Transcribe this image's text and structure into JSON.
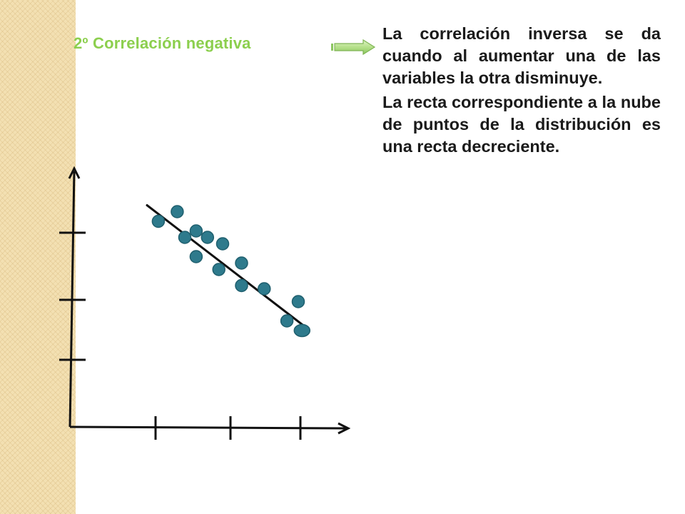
{
  "slide": {
    "title": "2º Correlación negativa",
    "accent_color": "#8ccf4e",
    "arrow_icon": "right-arrow-icon"
  },
  "description": {
    "paragraphs": [
      "La correlación inversa se da cuando al aumentar una de las variables la otra disminuye.",
      "La recta correspondiente a la nube de puntos de la distribución es una recta decreciente."
    ]
  },
  "chart_data": {
    "type": "scatter",
    "title": "",
    "xlabel": "",
    "ylabel": "",
    "x_ticks": 3,
    "y_ticks": 3,
    "points": [
      {
        "x": 1.4,
        "y": 3.35
      },
      {
        "x": 1.15,
        "y": 3.2
      },
      {
        "x": 1.5,
        "y": 2.95
      },
      {
        "x": 1.65,
        "y": 3.05
      },
      {
        "x": 1.8,
        "y": 2.95
      },
      {
        "x": 2.0,
        "y": 2.85
      },
      {
        "x": 1.65,
        "y": 2.65
      },
      {
        "x": 2.25,
        "y": 2.55
      },
      {
        "x": 1.95,
        "y": 2.45
      },
      {
        "x": 2.25,
        "y": 2.2
      },
      {
        "x": 2.55,
        "y": 2.15
      },
      {
        "x": 3.0,
        "y": 1.95
      },
      {
        "x": 2.85,
        "y": 1.65
      },
      {
        "x": 3.05,
        "y": 1.5
      }
    ],
    "trend_line": {
      "x": [
        1.0,
        3.1
      ],
      "y": [
        3.45,
        1.55
      ]
    },
    "point_color": "#2e7a8c",
    "point_edge_color": "#1f5f6e",
    "line_color": "#111111",
    "axis_color": "#111111"
  }
}
